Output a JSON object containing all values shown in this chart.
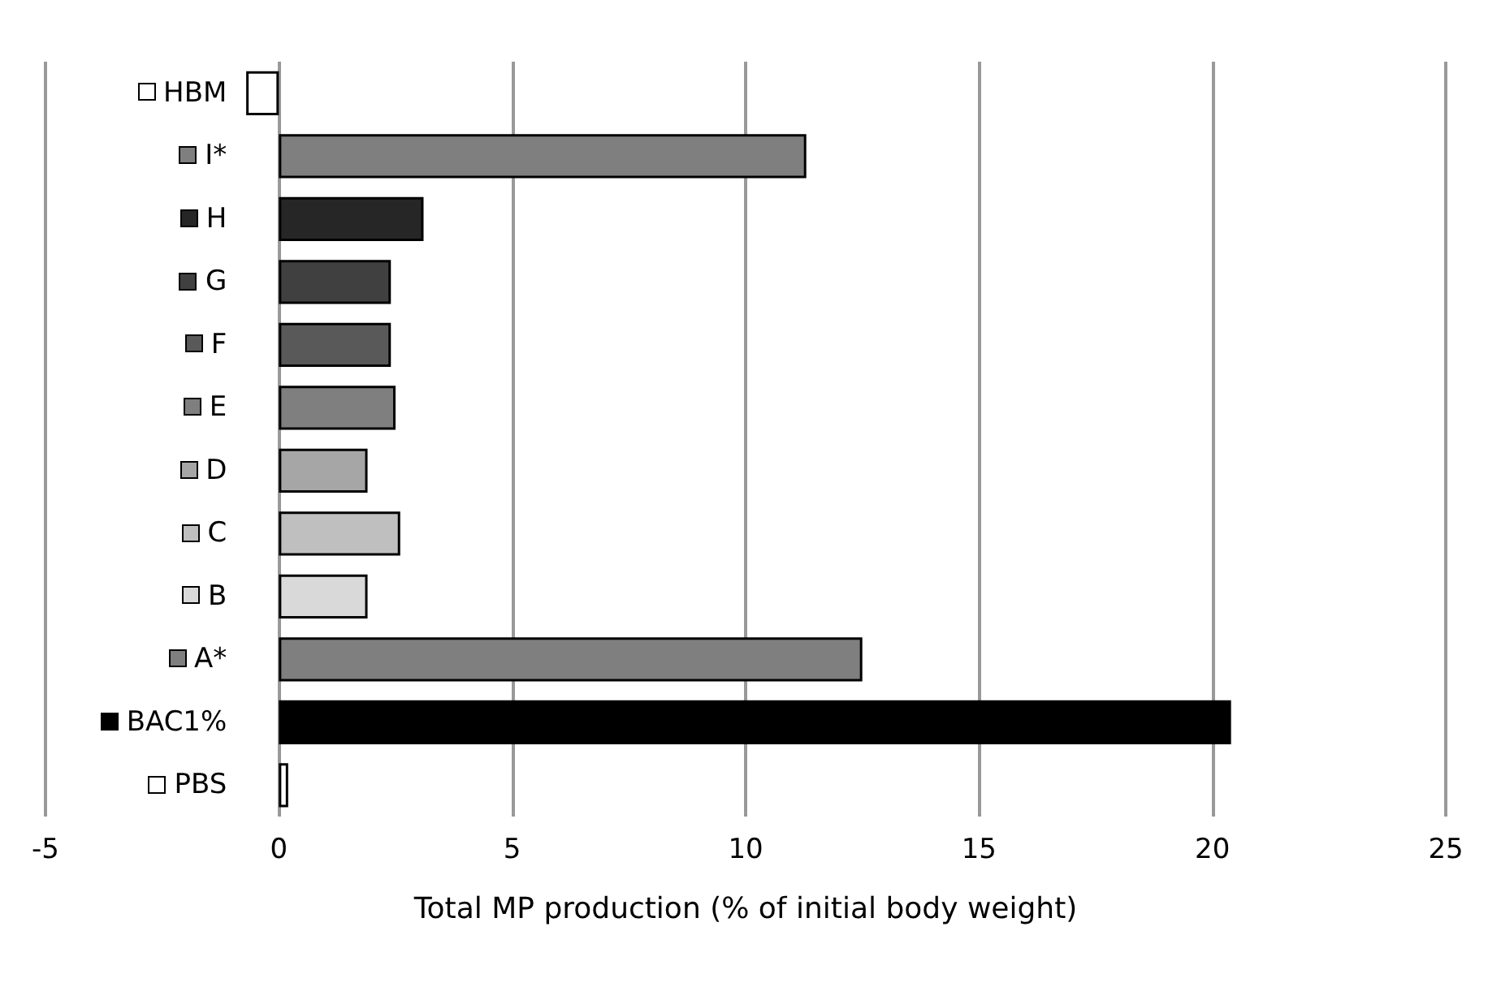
{
  "chart_data": {
    "type": "bar",
    "orientation": "horizontal",
    "xlabel": "Total MP production (% of initial body weight)",
    "categories": [
      "HBM",
      "I*",
      "H",
      "G",
      "F",
      "E",
      "D",
      "C",
      "B",
      "A*",
      "BAC1%",
      "PBS"
    ],
    "values": [
      -0.7,
      11.3,
      3.1,
      2.4,
      2.4,
      2.5,
      1.9,
      2.6,
      1.9,
      12.5,
      20.4,
      0.2
    ],
    "colors": [
      "#ffffff",
      "#7f7f7f",
      "#262626",
      "#404040",
      "#595959",
      "#7f7f7f",
      "#a6a6a6",
      "#bfbfbf",
      "#d9d9d9",
      "#7f7f7f",
      "#000000",
      "#ffffff"
    ],
    "xlim": [
      -5,
      25
    ],
    "xticks": [
      -5,
      0,
      5,
      10,
      15,
      20,
      25
    ],
    "grid": "x"
  }
}
